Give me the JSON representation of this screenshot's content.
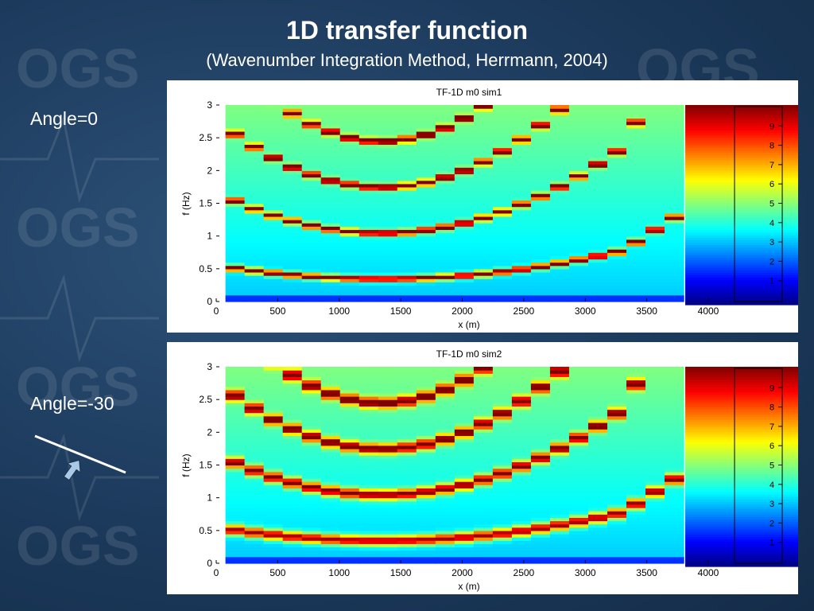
{
  "slide": {
    "title": "1D transfer function",
    "subtitle": "(Wavenumber Integration Method, Herrmann, 2004)",
    "background_color": "#1c3a5c",
    "watermark_text": "OGS"
  },
  "labels": {
    "angle_top": "Angle=0",
    "angle_bottom": "Angle=-30"
  },
  "chart_data": [
    {
      "type": "heatmap",
      "title": "TF-1D m0 sim1",
      "xlabel": "x (m)",
      "ylabel": "f (Hz)",
      "xlim": [
        0,
        4000
      ],
      "ylim": [
        0,
        3
      ],
      "xticks": [
        0,
        500,
        1000,
        1500,
        2000,
        2500,
        3000,
        3500,
        4000
      ],
      "yticks": [
        0,
        0.5,
        1,
        1.5,
        2,
        2.5,
        3
      ],
      "data_x_range": [
        75,
        3800
      ],
      "columns": 24,
      "resonance_model": "f_n = (2n-1) * f0(x), f0 lowest near x=1350 m, peak value ~10 at resonances",
      "colormap": "jet",
      "colorbar": {
        "range": [
          0,
          10
        ],
        "ticks": [
          1,
          2,
          3,
          4,
          5,
          6,
          7,
          8,
          9
        ]
      }
    },
    {
      "type": "heatmap",
      "title": "TF-1D m0 sim2",
      "xlabel": "x (m)",
      "ylabel": "f (Hz)",
      "xlim": [
        0,
        4000
      ],
      "ylim": [
        0,
        3
      ],
      "xticks": [
        0,
        500,
        1000,
        1500,
        2000,
        2500,
        3000,
        3500,
        4000
      ],
      "yticks": [
        0,
        0.5,
        1,
        1.5,
        2,
        2.5,
        3
      ],
      "data_x_range": [
        75,
        3800
      ],
      "columns": 24,
      "resonance_model": "f_n = (2n-1) * f0(x), broader lower-amplitude peaks than sim1",
      "colormap": "jet",
      "colorbar": {
        "range": [
          0,
          10
        ],
        "ticks": [
          1,
          2,
          3,
          4,
          5,
          6,
          7,
          8,
          9
        ]
      }
    }
  ]
}
